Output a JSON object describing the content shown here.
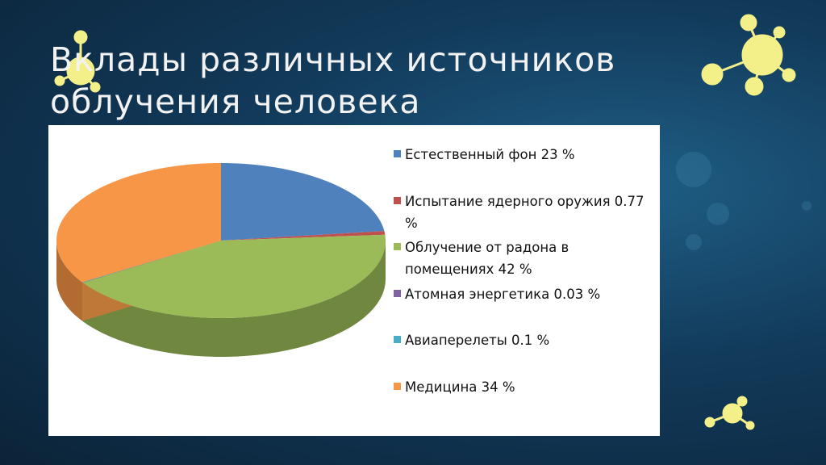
{
  "chart_data": {
    "type": "pie3d",
    "title": "Вклады различных источников облучения человека",
    "categories": [
      "Естественный фон 23 %",
      "Испытание ядерного оружия 0.77 %",
      "Облучение от радона в помещениях 42 %",
      "Атомная энергетика 0.03 %",
      "Авиаперелеты 0.1 %",
      "Медицина 34 %"
    ],
    "values": [
      23,
      0.77,
      42,
      0.03,
      0.1,
      34
    ],
    "colors": [
      "#4f81bd",
      "#c0504d",
      "#9bbb59",
      "#8064a2",
      "#4bacc6",
      "#f79646"
    ]
  }
}
